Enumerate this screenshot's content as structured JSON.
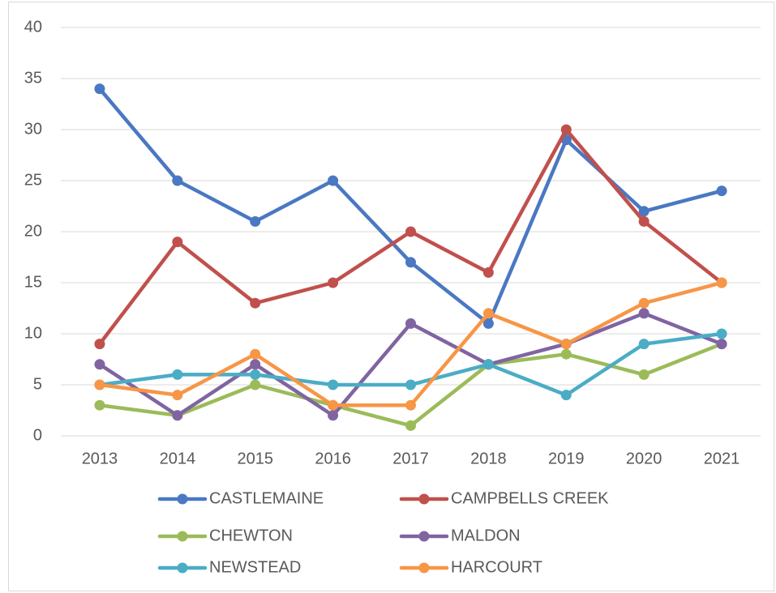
{
  "chart_data": {
    "type": "line",
    "categories": [
      "2013",
      "2014",
      "2015",
      "2016",
      "2017",
      "2018",
      "2019",
      "2020",
      "2021"
    ],
    "series": [
      {
        "name": "CASTLEMAINE",
        "color": "#4a78c2",
        "values": [
          34,
          25,
          21,
          25,
          17,
          11,
          29,
          22,
          24
        ]
      },
      {
        "name": "CAMPBELLS CREEK",
        "color": "#c0504d",
        "values": [
          9,
          19,
          13,
          15,
          20,
          16,
          30,
          21,
          15
        ]
      },
      {
        "name": "CHEWTON",
        "color": "#9bbb59",
        "values": [
          3,
          2,
          5,
          3,
          1,
          7,
          8,
          6,
          9
        ]
      },
      {
        "name": "MALDON",
        "color": "#8064a2",
        "values": [
          7,
          2,
          7,
          2,
          11,
          7,
          9,
          12,
          9
        ]
      },
      {
        "name": "NEWSTEAD",
        "color": "#4bacc6",
        "values": [
          5,
          6,
          6,
          5,
          5,
          7,
          4,
          9,
          10
        ]
      },
      {
        "name": "HARCOURT",
        "color": "#f79646",
        "values": [
          5,
          4,
          8,
          3,
          3,
          12,
          9,
          13,
          15
        ]
      }
    ],
    "ylim": [
      0,
      40
    ],
    "yticks": [
      0,
      5,
      10,
      15,
      20,
      25,
      30,
      35,
      40
    ],
    "grid": true,
    "legend": "bottom"
  }
}
